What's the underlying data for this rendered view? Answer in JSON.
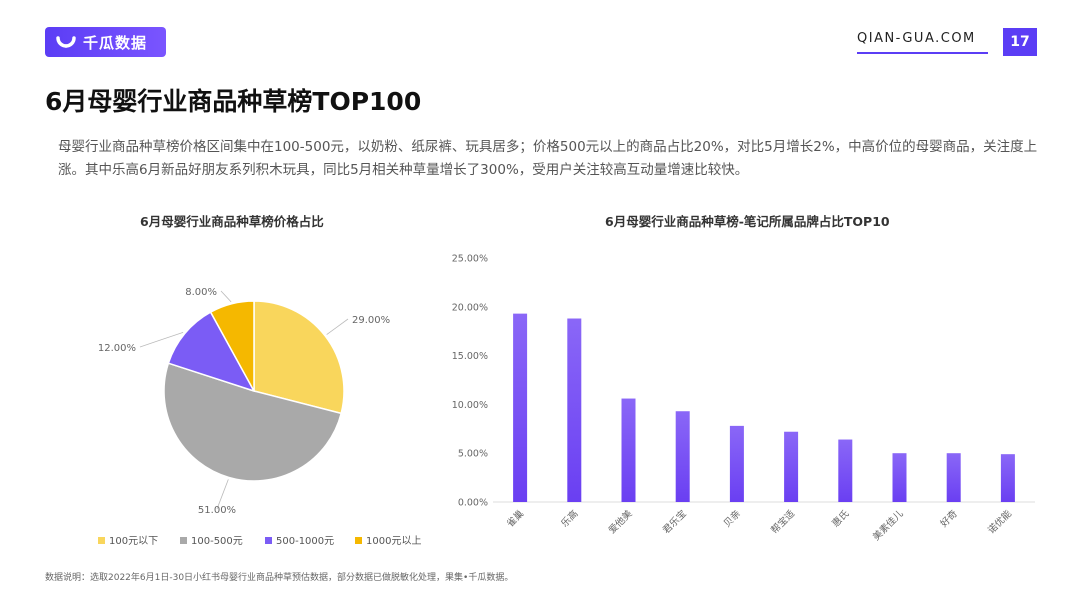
{
  "header": {
    "brand": "千瓜数据",
    "site": "QIAN-GUA.COM",
    "page_number": "17"
  },
  "title": "6月母婴行业商品种草榜TOP100",
  "description": "母婴行业商品种草榜价格区间集中在100-500元，以奶粉、纸尿裤、玩具居多；价格500元以上的商品占比20%，对比5月增长2%，中高价位的母婴商品，关注度上涨。其中乐高6月新品好朋友系列积木玩具，同比5月相关种草量增长了300%，受用户关注较高互动量增速比较快。",
  "footnote": "数据说明：选取2022年6月1日-30日小红书母婴行业商品种草预估数据，部分数据已做脱敏化处理，果集•千瓜数据。",
  "colors": {
    "accent": "#5b3df5",
    "pie": [
      "#f9d65c",
      "#a9a9a9",
      "#7b5cf5",
      "#f5b800"
    ],
    "bar_top": "#8a67f7",
    "bar_bottom": "#6a3ff2"
  },
  "chart_data": [
    {
      "type": "pie",
      "title": "6月母婴行业商品种草榜价格占比",
      "categories": [
        "100元以下",
        "100-500元",
        "500-1000元",
        "1000元以上"
      ],
      "values": [
        29.0,
        51.0,
        12.0,
        8.0
      ],
      "labels": [
        "29.00%",
        "51.00%",
        "12.00%",
        "8.00%"
      ],
      "legend": "bottom"
    },
    {
      "type": "bar",
      "title": "6月母婴行业商品种草榜-笔记所属品牌占比TOP10",
      "categories": [
        "雀巢",
        "乐高",
        "爱他美",
        "君乐宝",
        "贝亲",
        "帮宝适",
        "惠氏",
        "美素佳儿",
        "好奇",
        "诺优能"
      ],
      "values": [
        19.3,
        18.8,
        10.6,
        9.3,
        7.8,
        7.2,
        6.4,
        5.0,
        5.0,
        4.9
      ],
      "ylim": [
        0,
        25
      ],
      "yticks": [
        "0.00%",
        "5.00%",
        "10.00%",
        "15.00%",
        "20.00%",
        "25.00%"
      ],
      "grid": false
    }
  ]
}
